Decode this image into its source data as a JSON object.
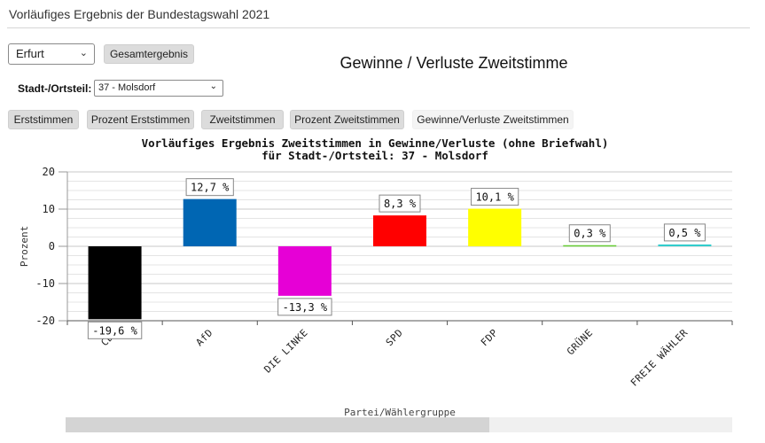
{
  "app_title": "Vorläufiges Ergebnis der Bundestagswahl 2021",
  "controls": {
    "city_value": "Erfurt",
    "overall_button": "Gesamtergebnis",
    "district_label": "Stadt-/Ortsteil:",
    "district_value": "37 - Molsdorf"
  },
  "main_heading": "Gewinne / Verluste Zweitstimme",
  "tabs": [
    {
      "label": "Erststimmen",
      "active": false
    },
    {
      "label": "Prozent Erststimmen",
      "active": false
    },
    {
      "label": "Zweitstimmen",
      "active": false
    },
    {
      "label": "Prozent Zweitstimmen",
      "active": false
    },
    {
      "label": "Gewinne/Verluste Zweitstimmen",
      "active": true
    }
  ],
  "chart_data": {
    "type": "bar",
    "title": "Vorläufiges Ergebnis Zweitstimmen in Gewinne/Verluste (ohne Briefwahl)",
    "subtitle": "für Stadt-/Ortsteil: 37 - Molsdorf",
    "xlabel": "Partei/Wählergruppe",
    "ylabel": "Prozent",
    "ylim": [
      -20,
      20
    ],
    "yticks": [
      20,
      10,
      0,
      -10,
      -20
    ],
    "grid": true,
    "categories": [
      "CDU",
      "AfD",
      "DIE LINKE",
      "SPD",
      "FDP",
      "GRÜNE",
      "FREIE WÄHLER"
    ],
    "values": [
      -19.6,
      12.7,
      -13.3,
      8.3,
      10.1,
      0.3,
      0.5
    ],
    "data_labels": [
      "-19,6 %",
      "12,7 %",
      "-13,3 %",
      "8,3 %",
      "10,1 %",
      "0,3 %",
      "0,5 %"
    ],
    "colors": [
      "#000000",
      "#0066b3",
      "#e600d6",
      "#ff0000",
      "#ffff00",
      "#66cc33",
      "#33cccc"
    ]
  }
}
